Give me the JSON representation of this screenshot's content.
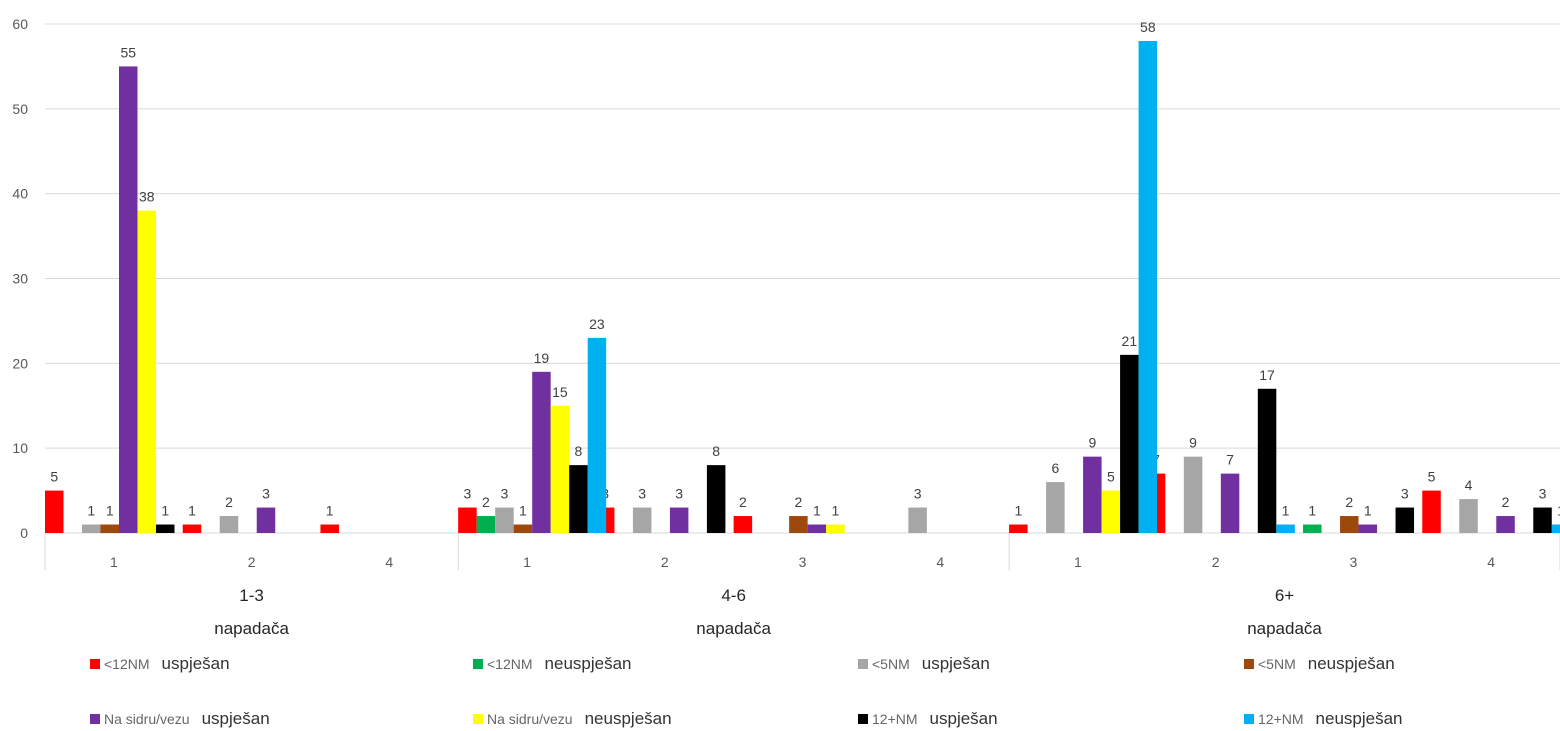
{
  "chart_data": {
    "type": "bar",
    "ylim": [
      0,
      60
    ],
    "yticks": [
      0,
      10,
      20,
      30,
      40,
      50,
      60
    ],
    "grid": true,
    "legend_position": "bottom",
    "groups": [
      {
        "label_line1": "1-3",
        "label_line2": "napadača",
        "subcategories": [
          "1",
          "2",
          "4"
        ]
      },
      {
        "label_line1": "4-6",
        "label_line2": "napadača",
        "subcategories": [
          "1",
          "2",
          "3",
          "4"
        ]
      },
      {
        "label_line1": "6+",
        "label_line2": "napadača",
        "subcategories": [
          "1",
          "2",
          "3",
          "4"
        ]
      }
    ],
    "series": [
      {
        "code": "<12NM",
        "status": "uspješan",
        "color": "#FF0000",
        "values": [
          5,
          1,
          1,
          3,
          3,
          2,
          0,
          1,
          7,
          0,
          5
        ]
      },
      {
        "code": "<12NM",
        "status": "neuspješan",
        "color": "#00B050",
        "values": [
          0,
          0,
          0,
          2,
          0,
          0,
          0,
          0,
          0,
          1,
          0
        ]
      },
      {
        "code": "<5NM",
        "status": "uspješan",
        "color": "#A6A6A6",
        "values": [
          1,
          2,
          0,
          3,
          3,
          0,
          3,
          6,
          9,
          0,
          4
        ]
      },
      {
        "code": "<5NM",
        "status": "neuspješan",
        "color": "#9E480E",
        "values": [
          1,
          0,
          0,
          1,
          0,
          2,
          0,
          0,
          0,
          2,
          0
        ]
      },
      {
        "code": "Na sidru/vezu",
        "status": "uspješan",
        "color": "#7030A0",
        "values": [
          55,
          3,
          0,
          19,
          3,
          1,
          0,
          9,
          7,
          1,
          2
        ]
      },
      {
        "code": "Na sidru/vezu",
        "status": "neuspješan",
        "color": "#FFFF00",
        "values": [
          38,
          0,
          0,
          15,
          0,
          1,
          0,
          5,
          0,
          0,
          0
        ]
      },
      {
        "code": "12+NM",
        "status": "uspješan",
        "color": "#000000",
        "values": [
          1,
          0,
          0,
          8,
          8,
          0,
          0,
          21,
          17,
          3,
          3
        ]
      },
      {
        "code": "12+NM",
        "status": "neuspješan",
        "color": "#00B0F0",
        "values": [
          0,
          0,
          0,
          23,
          0,
          0,
          0,
          58,
          1,
          0,
          1
        ]
      }
    ]
  }
}
